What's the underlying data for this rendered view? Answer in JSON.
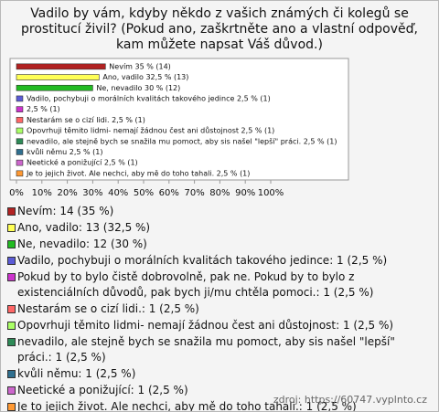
{
  "title": "Vadilo by vám, kdyby někdo z vašich známých či kolegů se prostitucí živil? (Pokud ano, zaškrtněte ano a vlastní odpověď, kam můžete napsat Váš důvod.)",
  "chart_data": {
    "type": "hbar",
    "categories": [
      "Nevím: 14 (35 %)",
      "Ano, vadilo: 13 (32,5 %)",
      "Ne, nevadilo: 12 (30 %)",
      "Vadilo, pochybuji o morálních kvalitách takového jedince: 1 (2,5 %)",
      "Pokud by to bylo čistě dobrovolně, pak ne. Pokud by to bylo z existenciálních důvodů, pak bych ji/mu chtěla pomoci.: 1 (2,5 %)",
      "Nestarám se o cizí lidi.: 1 (2,5 %)",
      "Opovrhuji těmito lidmi- nemají žádnou čest ani důstojnost: 1 (2,5 %)",
      "nevadilo, ale stejně bych se snažila mu pomoct, aby sis našel \"lepší\" práci.: 1 (2,5 %)",
      "kvůli němu: 1 (2,5 %)",
      "Neetické a ponižující: 1 (2,5 %)",
      "Je to jejich život. Ale nechci, aby mě do toho tahali.: 1 (2,5 %)"
    ],
    "values": [
      35,
      32.5,
      30,
      2.5,
      2.5,
      2.5,
      2.5,
      2.5,
      2.5,
      2.5,
      2.5
    ],
    "value_labels": [
      "Nevím 35 % (14)",
      "Ano, vadilo 32,5 % (13)",
      "Ne, nevadilo 30 % (12)",
      "Vadilo, pochybuji o morálních kvalitách takového jedince 2,5 % (1)",
      "2,5 % (1)",
      "Nestarám se o cizí lidi. 2,5 % (1)",
      "Opovrhuji těmito lidmi- nemají žádnou čest ani důstojnost 2,5 % (1)",
      "nevadilo, ale stejně bych se snažila mu pomoct, aby sis našel \"lepší\" práci. 2,5 % (1)",
      "kvůli němu 2,5 % (1)",
      "Neetické a ponižující 2,5 % (1)",
      "Je to jejich život. Ale nechci, aby mě do toho tahali. 2,5 % (1)"
    ],
    "colors": [
      "#b22222",
      "#ffff55",
      "#22bb22",
      "#5b5bd6",
      "#cc33cc",
      "#ff6666",
      "#aaff66",
      "#2e8b57",
      "#2f6f8f",
      "#cc66cc",
      "#ff9933"
    ],
    "xlim": [
      0,
      100
    ],
    "xticks": [
      {
        "value": 0,
        "label": "0%"
      },
      {
        "value": 10,
        "label": "10%"
      },
      {
        "value": 20,
        "label": "20%"
      },
      {
        "value": 30,
        "label": "30%"
      },
      {
        "value": 40,
        "label": "40%"
      },
      {
        "value": 50,
        "label": "50%"
      },
      {
        "value": 60,
        "label": "60%"
      },
      {
        "value": 70,
        "label": "70%"
      },
      {
        "value": 80,
        "label": "80%"
      },
      {
        "value": 90,
        "label": "90%"
      },
      {
        "value": 100,
        "label": "100%"
      }
    ],
    "grid": false
  },
  "source": "zdroj: https://60747.vyplnto.cz"
}
